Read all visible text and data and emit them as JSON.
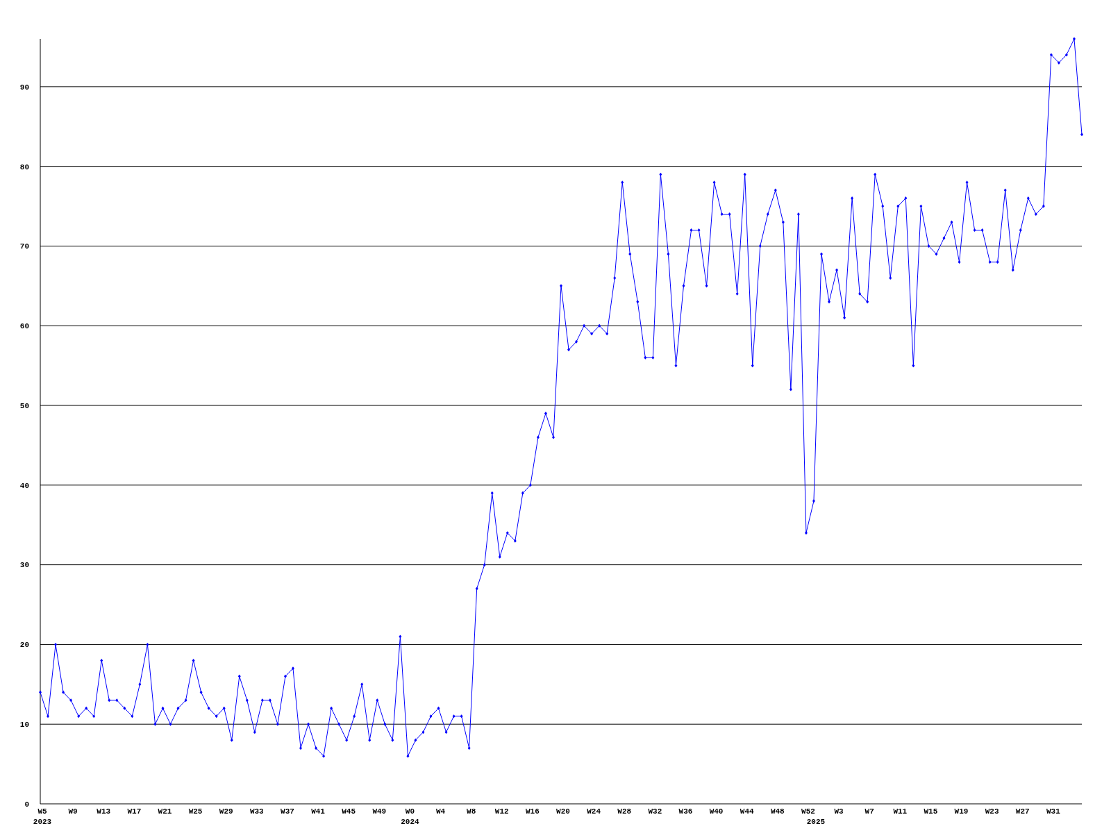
{
  "chart_data": {
    "type": "line",
    "categories": [
      "W5\n2023",
      null,
      null,
      null,
      "W9",
      null,
      null,
      null,
      "W13",
      null,
      null,
      null,
      "W17",
      null,
      null,
      null,
      "W21",
      null,
      null,
      null,
      "W25",
      null,
      null,
      null,
      "W29",
      null,
      null,
      null,
      "W33",
      null,
      null,
      null,
      "W37",
      null,
      null,
      null,
      "W41",
      null,
      null,
      null,
      "W45",
      null,
      null,
      null,
      "W49",
      null,
      null,
      null,
      "W0\n2024",
      null,
      null,
      null,
      "W4",
      null,
      null,
      null,
      "W8",
      null,
      null,
      null,
      "W12",
      null,
      null,
      null,
      "W16",
      null,
      null,
      null,
      "W20",
      null,
      null,
      null,
      "W24",
      null,
      null,
      null,
      "W28",
      null,
      null,
      null,
      "W32",
      null,
      null,
      null,
      "W36",
      null,
      null,
      null,
      "W40",
      null,
      null,
      null,
      "W44",
      null,
      null,
      null,
      "W48",
      null,
      null,
      null,
      "W52",
      "\n2025",
      null,
      null,
      "W3",
      null,
      null,
      null,
      "W7",
      null,
      null,
      null,
      "W11",
      null,
      null,
      null,
      "W15",
      null,
      null,
      null,
      "W19",
      null,
      null,
      null,
      "W23",
      null,
      null,
      null,
      "W27",
      null,
      null,
      null,
      "W31",
      null,
      null,
      null,
      null
    ],
    "series": [
      {
        "color": "#0000ff",
        "values": [
          14,
          11,
          20,
          14,
          13,
          11,
          12,
          11,
          18,
          13,
          13,
          12,
          11,
          15,
          20,
          10,
          12,
          10,
          12,
          13,
          18,
          14,
          12,
          11,
          12,
          8,
          16,
          13,
          9,
          13,
          13,
          10,
          16,
          17,
          7,
          10,
          7,
          6,
          12,
          10,
          8,
          11,
          15,
          8,
          13,
          10,
          8,
          21,
          6,
          8,
          9,
          11,
          12,
          9,
          11,
          11,
          7,
          27,
          30,
          39,
          31,
          34,
          33,
          39,
          40,
          46,
          49,
          46,
          65,
          57,
          58,
          60,
          59,
          60,
          59,
          66,
          78,
          69,
          63,
          56,
          56,
          79,
          69,
          55,
          65,
          72,
          72,
          65,
          78,
          74,
          74,
          64,
          79,
          55,
          70,
          74,
          77,
          73,
          52,
          74,
          34,
          38,
          69,
          63,
          67,
          61,
          76,
          64,
          63,
          79,
          75,
          66,
          75,
          76,
          55,
          75,
          70,
          69,
          71,
          73,
          68,
          78,
          72,
          72,
          68,
          68,
          77,
          67,
          72,
          76,
          74,
          75,
          94,
          93,
          94,
          96,
          84
        ]
      }
    ],
    "ylim": [
      0,
      96
    ],
    "yticks": [
      0,
      10,
      20,
      30,
      40,
      50,
      60,
      70,
      80,
      90
    ],
    "grid": "y",
    "marker": "diamond",
    "line_style": "solid"
  }
}
